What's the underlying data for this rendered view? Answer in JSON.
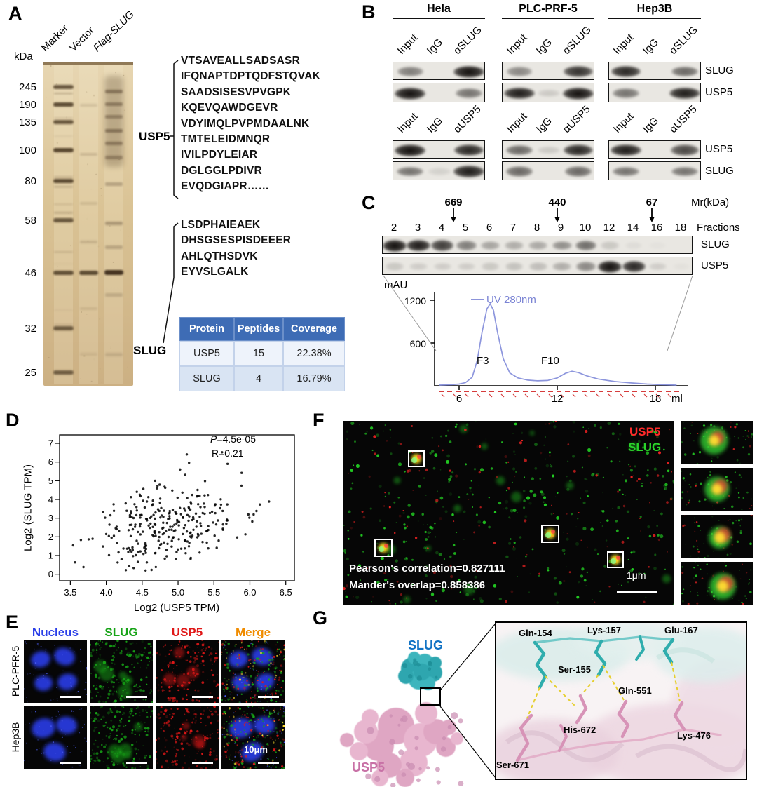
{
  "panelA": {
    "label": "A",
    "kda_label": "kDa",
    "lanes": [
      "Marker",
      "Vector",
      "Flag-SLUG"
    ],
    "markers": [
      "245",
      "190",
      "135",
      "100",
      "80",
      "58",
      "46",
      "32",
      "25"
    ],
    "usp5": {
      "name": "USP5",
      "peptides": [
        "VTSAVEALLSADSASR",
        "IFQNAPTDPTQDFSTQVAK",
        "SAADSISESVPVGPK",
        "KQEVQAWDGEVR",
        "VDYIMQLPVPMDAALNK",
        "TMTELEIDMNQR",
        "IVILPDYLEIAR",
        "DGLGGLPDIVR",
        "EVQDGIAPR……"
      ]
    },
    "slug": {
      "name": "SLUG",
      "peptides": [
        "LSDPHAIEAEK",
        "DHSGSESPISDEEER",
        "AHLQTHSDVK",
        "EYVSLGALK"
      ]
    },
    "table": {
      "headers": [
        "Protein",
        "Peptides",
        "Coverage"
      ],
      "rows": [
        [
          "USP5",
          "15",
          "22.38%"
        ],
        [
          "SLUG",
          "4",
          "16.79%"
        ]
      ]
    }
  },
  "panelB": {
    "label": "B",
    "cell_lines": [
      "Hela",
      "PLC-PRF-5",
      "Hep3B"
    ],
    "sets": [
      {
        "lanes": [
          "Input",
          "IgG",
          "αSLUG"
        ],
        "rows": [
          "SLUG",
          "USP5"
        ],
        "bands": [
          [
            [
              0.5,
              0,
              1.0
            ],
            [
              1.0,
              0,
              0.55
            ]
          ],
          [
            [
              0.45,
              0,
              0.85
            ],
            [
              0.95,
              0.14,
              1.0
            ]
          ],
          [
            [
              0.9,
              0,
              0.6
            ],
            [
              0.55,
              0,
              0.95
            ]
          ]
        ]
      },
      {
        "lanes": [
          "Input",
          "IgG",
          "αUSP5"
        ],
        "rows": [
          "USP5",
          "SLUG"
        ],
        "bands": [
          [
            [
              1.0,
              0,
              0.9
            ],
            [
              0.55,
              0.1,
              0.95
            ]
          ],
          [
            [
              0.6,
              0.14,
              0.9
            ],
            [
              0.6,
              0,
              0.6
            ]
          ],
          [
            [
              0.95,
              0,
              0.75
            ],
            [
              0.55,
              0,
              0.55
            ]
          ]
        ]
      }
    ]
  },
  "panelC": {
    "label": "C",
    "mr_label": "Mr(kDa)",
    "mr_markers": [
      "669",
      "440",
      "67"
    ],
    "fractions_label": "Fractions",
    "fractions": [
      "2",
      "3",
      "4",
      "5",
      "6",
      "7",
      "8",
      "9",
      "10",
      "12",
      "14",
      "16",
      "18"
    ],
    "blots": [
      {
        "label": "SLUG",
        "intensities": [
          1,
          0.95,
          0.8,
          0.5,
          0.32,
          0.28,
          0.3,
          0.42,
          0.58,
          0.15,
          0.05,
          0.02,
          0
        ]
      },
      {
        "label": "USP5",
        "intensities": [
          0.15,
          0.13,
          0.13,
          0.13,
          0.15,
          0.18,
          0.2,
          0.28,
          0.45,
          1,
          0.9,
          0.12,
          0.03
        ]
      }
    ],
    "chromatogram": {
      "y_label": "mAU",
      "y_tick_labels": [
        "1200",
        "600"
      ],
      "legend": "UV 280nm",
      "legend_color": "#7b84d4",
      "curve_color": "#8d96dd",
      "peak_labels": [
        "F3",
        "F10"
      ],
      "x_tick_labels": [
        "6",
        "12",
        "18"
      ],
      "x_unit": "ml"
    }
  },
  "panelD": {
    "label": "D",
    "p_prefix": "P",
    "p_value": "=4.5e-05",
    "r_prefix": "R",
    "r_value": "=0.21",
    "xlabel": "Log2 (USP5 TPM)",
    "ylabel": "Log2 (SLUG TPM)"
  },
  "panelE": {
    "label": "E",
    "channels": [
      {
        "label": "Nucleus",
        "color": "#2a3ee8"
      },
      {
        "label": "SLUG",
        "color": "#17a317"
      },
      {
        "label": "USP5",
        "color": "#e01818"
      },
      {
        "label": "Merge",
        "color": "#f08c00"
      }
    ],
    "rows": [
      "PLC-PFR-5",
      "Hep3B"
    ],
    "scale_text": "10μm"
  },
  "panelF": {
    "label": "F",
    "legend": [
      {
        "label": "USP5",
        "color": "#ff2a2a"
      },
      {
        "label": "SLUG",
        "color": "#2ad42a"
      }
    ],
    "pearson": "Pearson's correlation=0.827111",
    "manders": "Mander's overlap=0.858386",
    "scale_text": "1μm"
  },
  "panelG": {
    "label": "G",
    "slug_label": "SLUG",
    "usp5_label": "USP5",
    "slug_color": "#1273c4",
    "usp5_color": "#c871a6",
    "residues": [
      "Gln-154",
      "Lys-157",
      "Glu-167",
      "Ser-155",
      "Gln-551",
      "His-672",
      "Lys-476",
      "Ser-671"
    ]
  },
  "chart_data": [
    {
      "type": "scatter",
      "xlabel": "Log2 (USP5 TPM)",
      "ylabel": "Log2 (SLUG TPM)",
      "x_ticks": [
        3.5,
        4.0,
        4.5,
        5.0,
        5.5,
        6.0,
        6.5
      ],
      "y_ticks": [
        0,
        1,
        2,
        3,
        4,
        5,
        6,
        7
      ],
      "xlim": [
        3.35,
        6.62
      ],
      "ylim": [
        -0.35,
        7.45
      ],
      "annotations": [
        "P=4.5e-05",
        "R=0.21"
      ],
      "n_points": 295,
      "correlation": 0.21,
      "generator": {
        "seed": 11,
        "x_mean": 4.85,
        "x_sd": 0.52,
        "y_mean": 2.55,
        "y_sd": 1.3,
        "r": 0.21
      }
    },
    {
      "type": "line",
      "series": [
        {
          "name": "UV 280nm",
          "x": [
            4.8,
            5.5,
            6,
            6.4,
            6.8,
            7.1,
            7.4,
            7.7,
            7.9,
            8.1,
            8.35,
            8.7,
            9.1,
            9.6,
            10.2,
            10.8,
            11.4,
            12,
            12.5,
            12.9,
            13.3,
            13.8,
            14.5,
            15.5,
            16.5,
            17.5,
            18.5,
            19.3
          ],
          "y": [
            10,
            15,
            25,
            45,
            120,
            350,
            750,
            1080,
            1150,
            1060,
            750,
            380,
            180,
            110,
            80,
            70,
            75,
            110,
            175,
            205,
            185,
            140,
            95,
            60,
            40,
            25,
            15,
            10
          ]
        }
      ],
      "xlabel": "ml",
      "ylabel": "mAU",
      "xlim": [
        4.5,
        19.7
      ],
      "ylim": [
        0,
        1300
      ],
      "x_ticks": [
        6,
        12,
        18
      ],
      "y_ticks": [
        600,
        1200
      ],
      "annotations": [
        "F3",
        "F10"
      ]
    }
  ]
}
